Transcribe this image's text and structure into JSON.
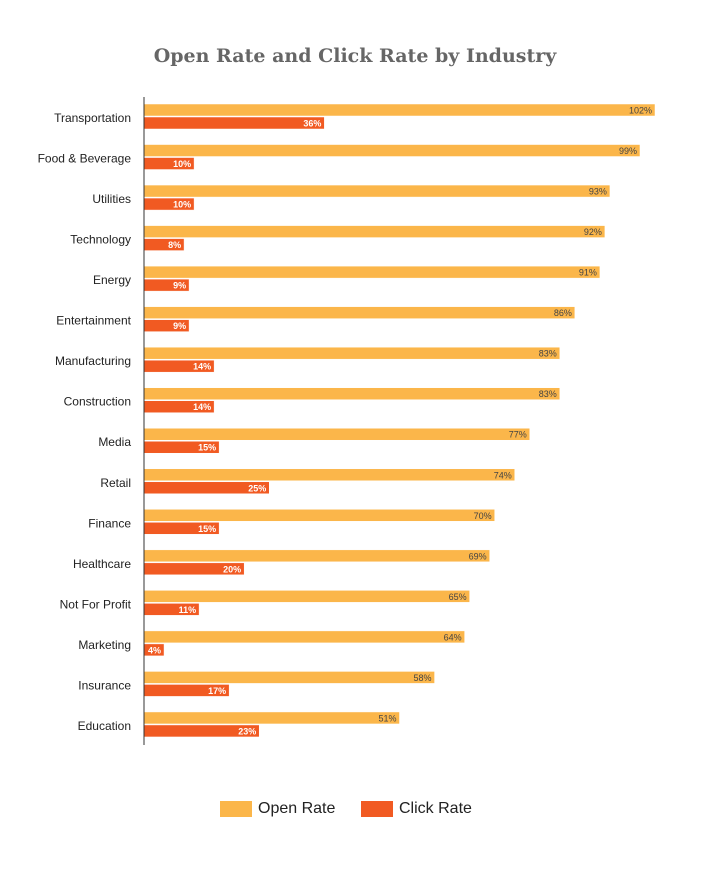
{
  "chart_data": {
    "type": "bar",
    "orientation": "horizontal",
    "title": "Open Rate and Click Rate by Industry",
    "categories": [
      "Transportation",
      "Food & Beverage",
      "Utilities",
      "Technology",
      "Energy",
      "Entertainment",
      "Manufacturing",
      "Construction",
      "Media",
      "Retail",
      "Finance",
      "Healthcare",
      "Not For Profit",
      "Marketing",
      "Insurance",
      "Education"
    ],
    "series": [
      {
        "name": "Open Rate",
        "color": "#FBB64A",
        "values": [
          102,
          99,
          93,
          92,
          91,
          86,
          83,
          83,
          77,
          74,
          70,
          69,
          65,
          64,
          58,
          51
        ]
      },
      {
        "name": "Click Rate",
        "color": "#F15A22",
        "values": [
          36,
          10,
          10,
          8,
          9,
          9,
          14,
          14,
          15,
          25,
          15,
          20,
          11,
          4,
          17,
          23
        ]
      }
    ],
    "value_suffix": "%",
    "xlim": [
      0,
      102
    ],
    "grid": false,
    "legend_position": "bottom"
  }
}
